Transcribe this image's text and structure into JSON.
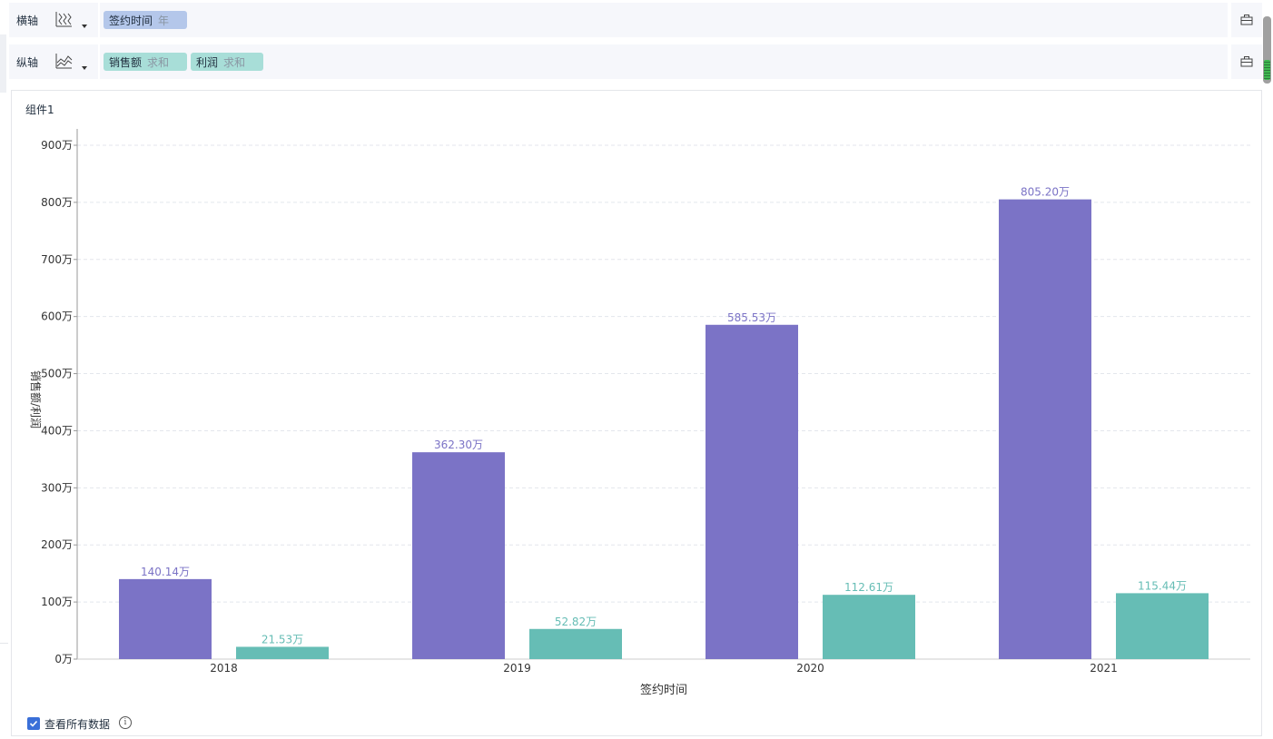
{
  "axes": {
    "x": {
      "label": "横轴",
      "icon": "x-axis-chart-type-icon",
      "fields": [
        {
          "name": "签约时间",
          "agg": "年"
        }
      ]
    },
    "y": {
      "label": "纵轴",
      "icon": "y-axis-chart-type-icon",
      "fields": [
        {
          "name": "销售额",
          "agg": "求和"
        },
        {
          "name": "利润",
          "agg": "求和"
        }
      ]
    }
  },
  "component": {
    "title": "组件1"
  },
  "footer": {
    "view_all_label": "查看所有数据",
    "checked": true
  },
  "colors": {
    "series_sales": "#7b73c6",
    "series_profit": "#66bdb5",
    "pill_blue": "#b4c7ea",
    "pill_teal": "#a8ded8",
    "checkbox": "#3a6fd8"
  },
  "chart_data": {
    "type": "bar",
    "categories": [
      "2018",
      "2019",
      "2020",
      "2021"
    ],
    "series": [
      {
        "values": [
          140.14,
          362.3,
          585.53,
          805.2
        ],
        "labels": [
          "140.14万",
          "362.30万",
          "585.53万",
          "805.20万"
        ]
      },
      {
        "values": [
          21.53,
          52.82,
          112.61,
          115.44
        ],
        "labels": [
          "21.53万",
          "52.82万",
          "112.61万",
          "115.44万"
        ]
      }
    ],
    "xlabel": "签约时间",
    "ylabel": "销售额/利润",
    "ylim": [
      0,
      900
    ],
    "yticks": [
      0,
      100,
      200,
      300,
      400,
      500,
      600,
      700,
      800,
      900
    ],
    "ytick_labels": [
      "0万",
      "100万",
      "200万",
      "300万",
      "400万",
      "500万",
      "600万",
      "700万",
      "800万",
      "900万"
    ],
    "grid": true,
    "legend": "none"
  }
}
